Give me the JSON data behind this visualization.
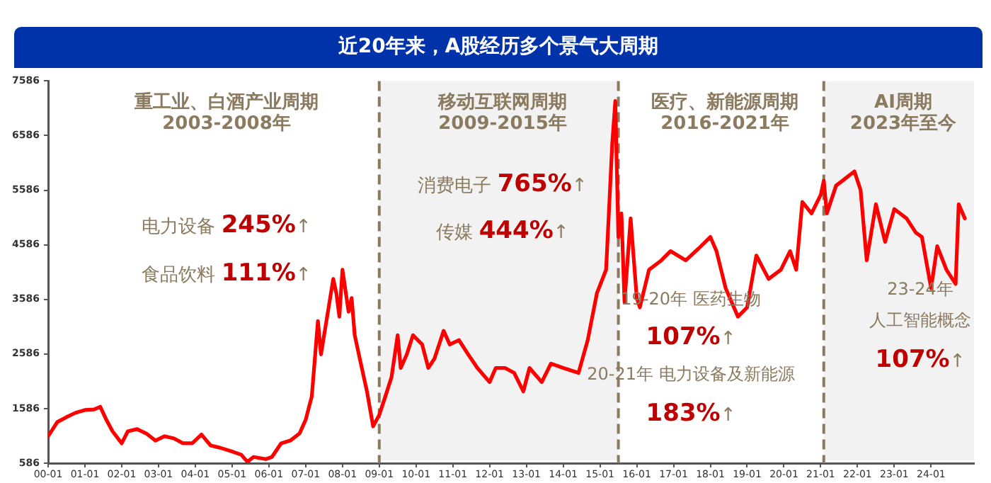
{
  "chart_data": {
    "type": "line",
    "title": "近20年来，A股经历多个景气大周期",
    "x": [
      "2000-01",
      "2000-04",
      "2000-07",
      "2000-10",
      "2001-01",
      "2001-04",
      "2001-06",
      "2001-08",
      "2001-10",
      "2002-01",
      "2002-03",
      "2002-06",
      "2002-09",
      "2002-12",
      "2003-03",
      "2003-06",
      "2003-09",
      "2003-12",
      "2004-03",
      "2004-06",
      "2004-09",
      "2005-01",
      "2005-04",
      "2005-06",
      "2005-08",
      "2005-12",
      "2006-02",
      "2006-05",
      "2006-08",
      "2006-11",
      "2007-01",
      "2007-03",
      "2007-05",
      "2007-06",
      "2007-08",
      "2007-10",
      "2007-11",
      "2007-12",
      "2008-01",
      "2008-03",
      "2008-04",
      "2008-05",
      "2008-07",
      "2008-09",
      "2008-11",
      "2009-01",
      "2009-03",
      "2009-05",
      "2009-07",
      "2009-08",
      "2009-10",
      "2009-12",
      "2010-03",
      "2010-05",
      "2010-07",
      "2010-10",
      "2010-12",
      "2011-03",
      "2011-06",
      "2011-09",
      "2012-01",
      "2012-03",
      "2012-06",
      "2012-09",
      "2012-12",
      "2013-02",
      "2013-06",
      "2013-09",
      "2014-01",
      "2014-06",
      "2014-09",
      "2014-12",
      "2015-03",
      "2015-05",
      "2015-06",
      "2015-07",
      "2015-08",
      "2015-09",
      "2015-11",
      "2016-01",
      "2016-02",
      "2016-05",
      "2016-09",
      "2016-12",
      "2017-05",
      "2017-09",
      "2018-01",
      "2018-03",
      "2018-06",
      "2018-10",
      "2019-01",
      "2019-04",
      "2019-08",
      "2019-12",
      "2020-03",
      "2020-05",
      "2020-07",
      "2020-10",
      "2021-01",
      "2021-02",
      "2021-03",
      "2021-06",
      "2021-09",
      "2021-12",
      "2022-02",
      "2022-04",
      "2022-07",
      "2022-10",
      "2023-01",
      "2023-05",
      "2023-08",
      "2023-10",
      "2024-01",
      "2024-03",
      "2024-06",
      "2024-09",
      "2024-10",
      "2024-12"
    ],
    "series": [
      {
        "color": "#ff0000",
        "values": [
          1080,
          1340,
          1430,
          1510,
          1560,
          1570,
          1620,
          1380,
          1170,
          950,
          1170,
          1210,
          1130,
          1000,
          1080,
          1040,
          950,
          950,
          1110,
          910,
          870,
          800,
          740,
          610,
          700,
          660,
          700,
          950,
          1000,
          1130,
          1380,
          1810,
          3190,
          2580,
          3270,
          3960,
          3700,
          3270,
          4130,
          3360,
          3610,
          2930,
          2410,
          1900,
          1260,
          1470,
          1810,
          2160,
          2930,
          2330,
          2580,
          2930,
          2760,
          2330,
          2500,
          3010,
          2760,
          2840,
          2580,
          2330,
          2070,
          2330,
          2330,
          2240,
          1900,
          2330,
          2070,
          2410,
          2330,
          2240,
          2840,
          3700,
          4130,
          6440,
          7220,
          4730,
          5160,
          3530,
          5070,
          3610,
          3440,
          4130,
          4300,
          4470,
          4300,
          4510,
          4730,
          4470,
          3790,
          3270,
          3440,
          4390,
          3960,
          4130,
          4470,
          4130,
          5370,
          5160,
          5500,
          5760,
          5160,
          5670,
          5800,
          5930,
          5590,
          4300,
          5330,
          4640,
          5240,
          5070,
          4810,
          4730,
          3790,
          4560,
          4130,
          3870,
          5330,
          5070
        ]
      }
    ],
    "xlim": [
      "2000-01",
      "2025-03"
    ],
    "xticks": [
      {
        "value": "2000-01",
        "label": "00-01"
      },
      {
        "value": "2001-01",
        "label": "01-01"
      },
      {
        "value": "2002-01",
        "label": "02-01"
      },
      {
        "value": "2003-01",
        "label": "03-01"
      },
      {
        "value": "2004-01",
        "label": "04-01"
      },
      {
        "value": "2005-01",
        "label": "05-01"
      },
      {
        "value": "2006-01",
        "label": "06-01"
      },
      {
        "value": "2007-01",
        "label": "07-01"
      },
      {
        "value": "2008-01",
        "label": "08-01"
      },
      {
        "value": "2009-01",
        "label": "09-01"
      },
      {
        "value": "2010-01",
        "label": "10-01"
      },
      {
        "value": "2011-01",
        "label": "11-01"
      },
      {
        "value": "2012-01",
        "label": "12-01"
      },
      {
        "value": "2013-01",
        "label": "13-01"
      },
      {
        "value": "2014-01",
        "label": "14-01"
      },
      {
        "value": "2015-01",
        "label": "15-01"
      },
      {
        "value": "2016-01",
        "label": "16-01"
      },
      {
        "value": "2017-01",
        "label": "17-01"
      },
      {
        "value": "2018-01",
        "label": "18-01"
      },
      {
        "value": "2019-01",
        "label": "19-01"
      },
      {
        "value": "2020-01",
        "label": "20-01"
      },
      {
        "value": "2021-01",
        "label": "21-01"
      },
      {
        "value": "2022-01",
        "label": "22-01"
      },
      {
        "value": "2023-01",
        "label": "23-01"
      },
      {
        "value": "2024-01",
        "label": "24-01"
      }
    ],
    "ylim": [
      586,
      7586
    ],
    "yticks": [
      586,
      1586,
      2586,
      3586,
      4586,
      5586,
      6586,
      7586
    ],
    "grid": false,
    "legend": false,
    "marker": "none",
    "line_style": "solid",
    "bands": [
      {
        "axis": "x",
        "from": "2009-01",
        "to": "2015-07",
        "color": "#f2f2f2"
      },
      {
        "axis": "x",
        "from": "2021-02",
        "to": "2025-03",
        "color": "#f2f2f2"
      }
    ],
    "ref_lines": [
      {
        "axis": "x",
        "value": "2009-01",
        "color": "#8b7a5e",
        "line_style": "dashed"
      },
      {
        "axis": "x",
        "value": "2015-07",
        "color": "#8b7a5e",
        "line_style": "dashed"
      },
      {
        "axis": "x",
        "value": "2021-02",
        "color": "#8b7a5e",
        "line_style": "dashed"
      }
    ],
    "annotations": [
      "重工业、白酒产业周期\n2003-2008年",
      "移动互联网周期\n2009-2015年",
      "医疗、新能源周期\n2016-2021年",
      "AI周期\n2023年至今",
      "电力设备 245%↑",
      "食品饮料 111%↑",
      "消费电子 765%↑",
      "传媒 444%↑",
      "19-20年 医药生物",
      "107%↑",
      "20-21年 电力设备及新能源",
      "183%↑",
      "23-24年",
      "人工智能概念",
      "107%↑"
    ]
  }
}
